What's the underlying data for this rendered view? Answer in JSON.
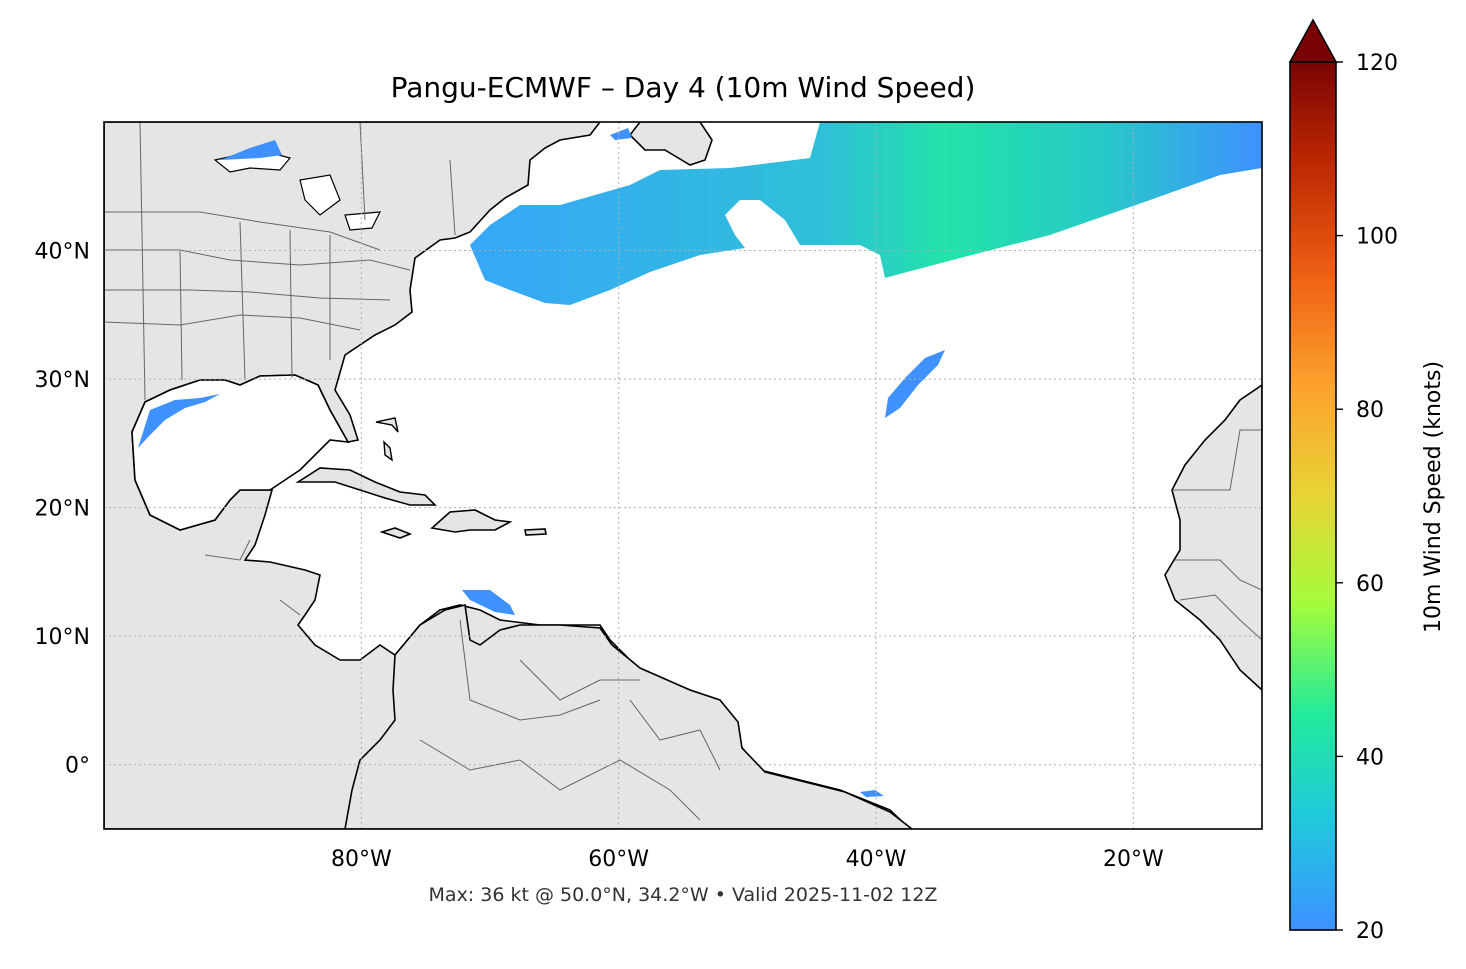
{
  "title": "Pangu-ECMWF – Day 4 (10m Wind Speed)",
  "footer": "Max: 36 kt @ 50.0°N, 34.2°W • Valid 2025-11-02 12Z",
  "map": {
    "lon_range": [
      -100,
      -10
    ],
    "lat_range": [
      -5,
      50
    ],
    "gridlines": true,
    "land_color": "#e5e5e5",
    "ocean_color": "#ffffff",
    "lon_ticks": [
      {
        "value": -80,
        "label": "80°W"
      },
      {
        "value": -60,
        "label": "60°W"
      },
      {
        "value": -40,
        "label": "40°W"
      },
      {
        "value": -20,
        "label": "20°W"
      }
    ],
    "lat_ticks": [
      {
        "value": 0,
        "label": "0°"
      },
      {
        "value": 10,
        "label": "10°N"
      },
      {
        "value": 20,
        "label": "20°N"
      },
      {
        "value": 30,
        "label": "30°N"
      },
      {
        "value": 40,
        "label": "40°N"
      }
    ]
  },
  "colorbar": {
    "label": "10m Wind Speed (knots)",
    "min": 20,
    "max": 120,
    "extend": "max",
    "ticks": [
      {
        "value": 20,
        "label": "20"
      },
      {
        "value": 40,
        "label": "40"
      },
      {
        "value": 60,
        "label": "60"
      },
      {
        "value": 80,
        "label": "80"
      },
      {
        "value": 100,
        "label": "100"
      },
      {
        "value": 120,
        "label": "120"
      }
    ],
    "colors": [
      "#3e91ff",
      "#1fc8de",
      "#22eb9a",
      "#a4fc3c",
      "#e7d434",
      "#fca32e",
      "#f06215",
      "#c22a03",
      "#7a0403"
    ]
  },
  "wind_regions": [
    {
      "name": "north-atlantic-jet",
      "peak_kt": 36,
      "color": "#2fc0d8"
    },
    {
      "name": "gulf-of-mexico",
      "peak_kt": 24,
      "color": "#3e91ff"
    },
    {
      "name": "caribbean",
      "peak_kt": 23,
      "color": "#3e91ff"
    },
    {
      "name": "mid-atlantic-streak",
      "peak_kt": 23,
      "color": "#3e91ff"
    }
  ]
}
